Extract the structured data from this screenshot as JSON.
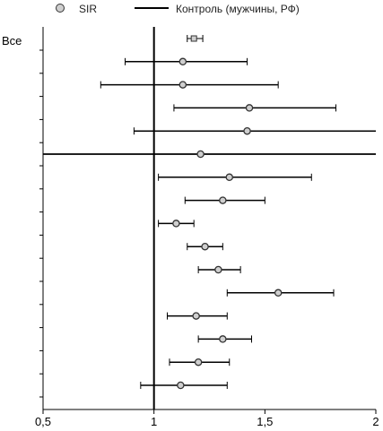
{
  "legend": {
    "sir_label": "SIR",
    "control_label": "Контроль (мужчины, РФ)"
  },
  "row_label_first": "Все",
  "chart_data": {
    "type": "forest",
    "xlim": [
      0.5,
      2
    ],
    "x_ticks": [
      0.5,
      1,
      1.5,
      2
    ],
    "x_tick_labels": [
      "0,5",
      "1",
      "1,5",
      "2"
    ],
    "reference_line_x": 1,
    "rows": [
      {
        "label": "Все",
        "estimate": 1.18,
        "lower": 1.15,
        "upper": 1.22
      },
      {
        "label": "",
        "estimate": 1.13,
        "lower": 0.87,
        "upper": 1.42
      },
      {
        "label": "",
        "estimate": 1.13,
        "lower": 0.76,
        "upper": 1.56
      },
      {
        "label": "",
        "estimate": 1.43,
        "lower": 1.09,
        "upper": 1.82
      },
      {
        "label": "",
        "estimate": 1.42,
        "lower": 0.91,
        "upper": 2.0
      },
      {
        "label": "",
        "estimate": 1.21,
        "lower": 0.5,
        "upper": 2.0
      },
      {
        "label": "",
        "estimate": 1.34,
        "lower": 1.02,
        "upper": 1.71
      },
      {
        "label": "",
        "estimate": 1.31,
        "lower": 1.14,
        "upper": 1.5
      },
      {
        "label": "",
        "estimate": 1.1,
        "lower": 1.02,
        "upper": 1.18
      },
      {
        "label": "",
        "estimate": 1.23,
        "lower": 1.15,
        "upper": 1.31
      },
      {
        "label": "",
        "estimate": 1.29,
        "lower": 1.2,
        "upper": 1.39
      },
      {
        "label": "",
        "estimate": 1.56,
        "lower": 1.33,
        "upper": 1.81
      },
      {
        "label": "",
        "estimate": 1.19,
        "lower": 1.06,
        "upper": 1.33
      },
      {
        "label": "",
        "estimate": 1.31,
        "lower": 1.2,
        "upper": 1.44
      },
      {
        "label": "",
        "estimate": 1.2,
        "lower": 1.07,
        "upper": 1.34
      },
      {
        "label": "",
        "estimate": 1.12,
        "lower": 0.94,
        "upper": 1.33
      }
    ],
    "colors": {
      "point_fill": "#cfcfcf",
      "point_stroke": "#333333",
      "line": "#000000"
    }
  }
}
